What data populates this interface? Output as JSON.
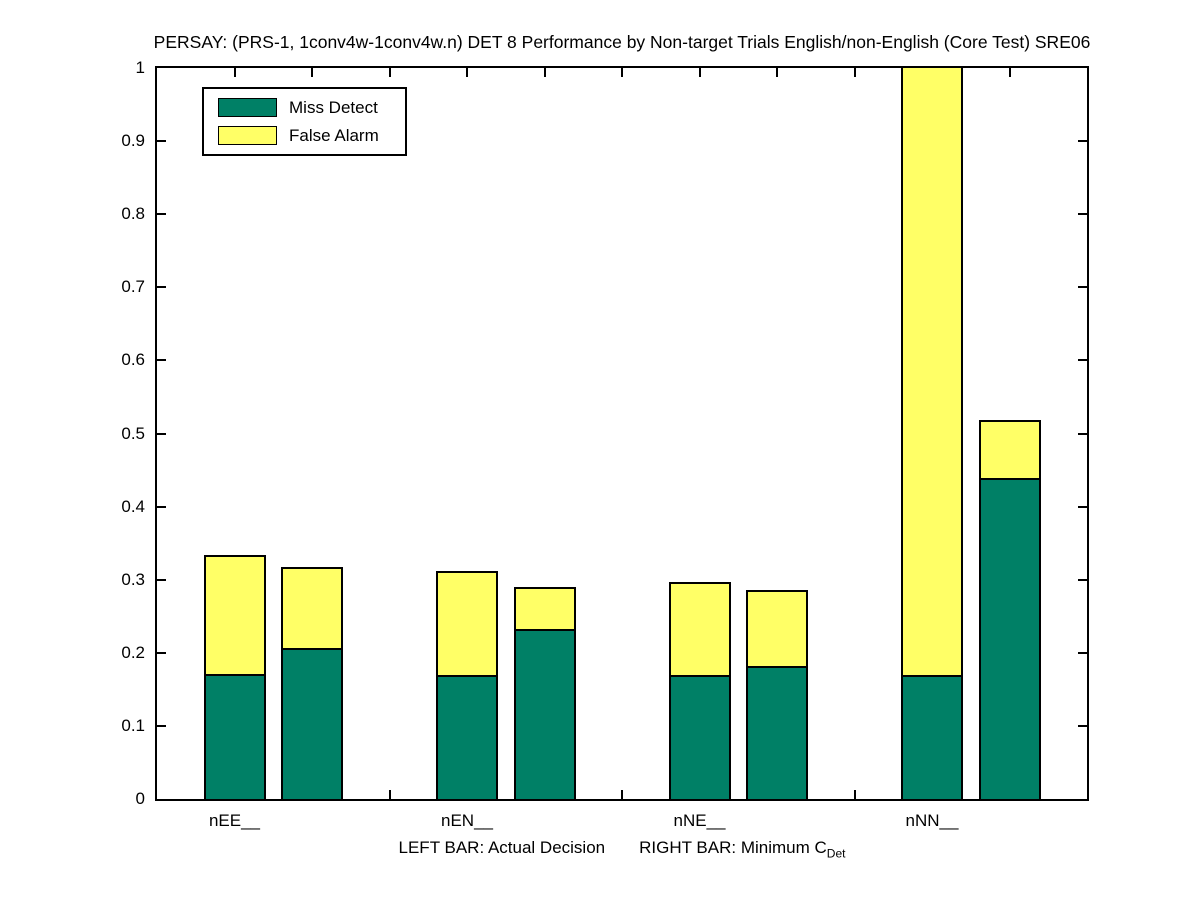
{
  "chart_data": {
    "type": "bar",
    "stacked": true,
    "title": "PERSAY: (PRS-1, 1conv4w-1conv4w.n) DET 8 Performance by Non-target Trials English/non-English (Core Test) SRE06",
    "categories": [
      "nEE__",
      "nEN__",
      "nNE__",
      "nNN__"
    ],
    "bar_pair_meaning": {
      "left_bar": "Actual Decision",
      "right_bar": "Minimum CDet"
    },
    "series_legend": [
      {
        "name": "Miss Detect",
        "color": "#008066"
      },
      {
        "name": "False Alarm",
        "color": "#FFFF66"
      }
    ],
    "groups": [
      {
        "category": "nEE__",
        "actual": {
          "miss_detect": 0.168,
          "false_alarm": 0.165,
          "total": 0.333
        },
        "minimum": {
          "miss_detect": 0.204,
          "false_alarm": 0.114,
          "total": 0.318
        }
      },
      {
        "category": "nEN__",
        "actual": {
          "miss_detect": 0.167,
          "false_alarm": 0.145,
          "total": 0.312
        },
        "minimum": {
          "miss_detect": 0.23,
          "false_alarm": 0.06,
          "total": 0.29
        }
      },
      {
        "category": "nNE__",
        "actual": {
          "miss_detect": 0.167,
          "false_alarm": 0.13,
          "total": 0.297
        },
        "minimum": {
          "miss_detect": 0.179,
          "false_alarm": 0.107,
          "total": 0.286
        }
      },
      {
        "category": "nNN__",
        "actual": {
          "miss_detect": 0.167,
          "false_alarm": 0.833,
          "total": 1.0,
          "clipped_at_top": true
        },
        "minimum": {
          "miss_detect": 0.437,
          "false_alarm": 0.082,
          "total": 0.519
        }
      }
    ],
    "ylim": [
      0,
      1
    ],
    "ytick_labels": [
      "0",
      "0.1",
      "0.2",
      "0.3",
      "0.4",
      "0.5",
      "0.6",
      "0.7",
      "0.8",
      "0.9",
      "1"
    ],
    "xlabel": {
      "left_part": "LEFT BAR: Actual Decision",
      "right_part": "RIGHT BAR: Minimum C",
      "right_subscript": "Det"
    },
    "legend": {
      "position": "top-left",
      "items": [
        "Miss Detect",
        "False Alarm"
      ]
    },
    "grid": false,
    "colors": {
      "miss_detect": "#008066",
      "false_alarm": "#FFFF66",
      "axis": "#000000",
      "background": "#FFFFFF"
    }
  }
}
